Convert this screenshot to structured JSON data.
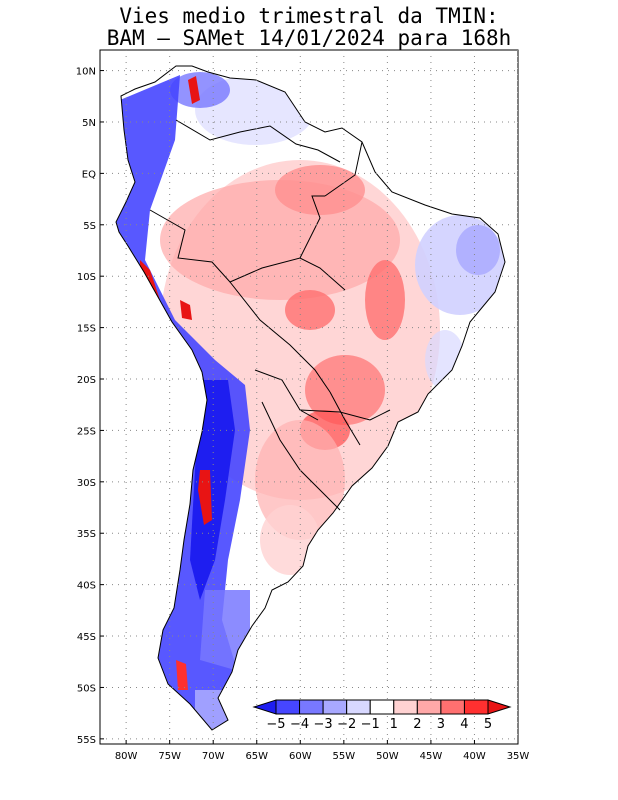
{
  "title": {
    "line1": "Vies medio trimestral da TMIN:",
    "line2": "BAM – SAMet 14/01/2024  para 168h"
  },
  "map": {
    "region": "South America",
    "lon_range": [
      -83,
      -35
    ],
    "lat_range": [
      -55.5,
      12
    ],
    "lon_ticks": [
      "80W",
      "75W",
      "70W",
      "65W",
      "60W",
      "55W",
      "50W",
      "45W",
      "40W",
      "35W"
    ],
    "lat_ticks": [
      "10N",
      "5N",
      "EQ",
      "5S",
      "10S",
      "15S",
      "20S",
      "25S",
      "30S",
      "35S",
      "40S",
      "45S",
      "50S",
      "55S"
    ],
    "grid": "dotted"
  },
  "colorbar": {
    "labels": [
      "−5",
      "−4",
      "−3",
      "−2",
      "−1",
      "1",
      "2",
      "3",
      "4",
      "5"
    ],
    "colors": [
      "#1e1ef0",
      "#4646ff",
      "#7878ff",
      "#a8a8ff",
      "#d8d8ff",
      "#ffffff",
      "#ffd2d2",
      "#ffa8a8",
      "#ff7070",
      "#ff3030",
      "#e81414"
    ]
  }
}
